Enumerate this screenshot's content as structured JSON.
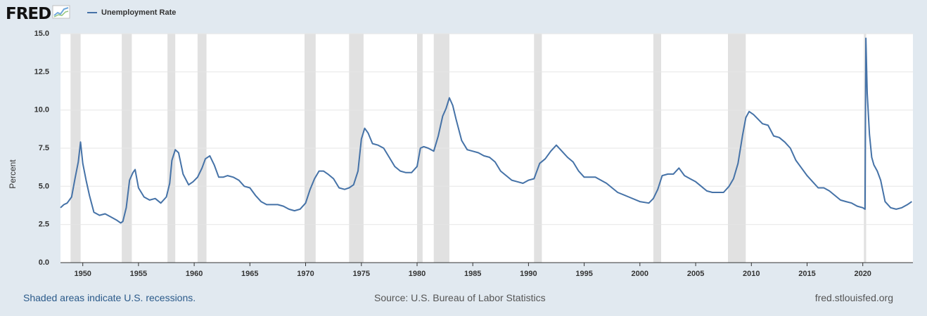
{
  "header": {
    "logo_text": "FRED",
    "logo_icon": "line-chart-icon",
    "legend_label": "Unemployment Rate"
  },
  "footer": {
    "recession_note": "Shaded areas indicate U.S. recessions.",
    "source": "Source: U.S. Bureau of Labor Statistics",
    "site": "fred.stlouisfed.org"
  },
  "colors": {
    "series": "#4572a7",
    "recession": "#e1e1e1",
    "background": "#e1e9f0",
    "plot": "#ffffff",
    "link": "#2b5a8a"
  },
  "chart_data": {
    "type": "line",
    "title": "",
    "xlabel": "",
    "ylabel": "Percent",
    "xlim": [
      1948.0,
      2024.5
    ],
    "ylim": [
      0,
      15
    ],
    "y_ticks": [
      "0.0",
      "2.5",
      "5.0",
      "7.5",
      "10.0",
      "12.5",
      "15.0"
    ],
    "x_ticks": [
      "1950",
      "1955",
      "1960",
      "1965",
      "1970",
      "1975",
      "1980",
      "1985",
      "1990",
      "1995",
      "2000",
      "2005",
      "2010",
      "2015",
      "2020"
    ],
    "grid": "horizontal",
    "legend": "top-left",
    "recessions": [
      [
        1948.9,
        1949.8
      ],
      [
        1953.5,
        1954.4
      ],
      [
        1957.6,
        1958.3
      ],
      [
        1960.3,
        1961.1
      ],
      [
        1969.9,
        1970.9
      ],
      [
        1973.9,
        1975.2
      ],
      [
        1980.0,
        1980.5
      ],
      [
        1981.5,
        1982.9
      ],
      [
        1990.5,
        1991.2
      ],
      [
        2001.2,
        2001.9
      ],
      [
        2007.9,
        2009.5
      ],
      [
        2020.1,
        2020.3
      ]
    ],
    "series": [
      {
        "name": "Unemployment Rate",
        "x": [
          1948.0,
          1948.3,
          1948.6,
          1949.0,
          1949.3,
          1949.6,
          1949.8,
          1950.0,
          1950.3,
          1950.6,
          1951.0,
          1951.5,
          1952.0,
          1952.5,
          1953.0,
          1953.4,
          1953.6,
          1953.9,
          1954.2,
          1954.5,
          1954.7,
          1955.0,
          1955.5,
          1956.0,
          1956.5,
          1957.0,
          1957.5,
          1957.8,
          1958.0,
          1958.3,
          1958.6,
          1959.0,
          1959.5,
          1959.9,
          1960.3,
          1960.7,
          1961.0,
          1961.4,
          1961.8,
          1962.2,
          1962.6,
          1963.0,
          1963.5,
          1964.0,
          1964.5,
          1965.0,
          1965.5,
          1966.0,
          1966.5,
          1967.0,
          1967.5,
          1968.0,
          1968.5,
          1969.0,
          1969.5,
          1970.0,
          1970.4,
          1970.8,
          1971.2,
          1971.6,
          1972.0,
          1972.5,
          1973.0,
          1973.5,
          1973.9,
          1974.3,
          1974.7,
          1975.0,
          1975.3,
          1975.6,
          1976.0,
          1976.5,
          1977.0,
          1977.5,
          1978.0,
          1978.5,
          1979.0,
          1979.5,
          1980.0,
          1980.3,
          1980.6,
          1981.0,
          1981.5,
          1981.9,
          1982.3,
          1982.6,
          1982.9,
          1983.2,
          1983.5,
          1984.0,
          1984.5,
          1985.0,
          1985.5,
          1986.0,
          1986.5,
          1987.0,
          1987.5,
          1988.0,
          1988.5,
          1989.0,
          1989.5,
          1990.0,
          1990.5,
          1991.0,
          1991.5,
          1992.0,
          1992.5,
          1993.0,
          1993.5,
          1994.0,
          1994.5,
          1995.0,
          1996.0,
          1997.0,
          1998.0,
          1999.0,
          2000.0,
          2000.8,
          2001.2,
          2001.6,
          2002.0,
          2002.5,
          2003.0,
          2003.5,
          2004.0,
          2004.5,
          2005.0,
          2005.5,
          2006.0,
          2006.5,
          2007.0,
          2007.5,
          2008.0,
          2008.4,
          2008.8,
          2009.2,
          2009.5,
          2009.8,
          2010.2,
          2010.6,
          2011.0,
          2011.5,
          2012.0,
          2012.5,
          2013.0,
          2013.5,
          2014.0,
          2014.5,
          2015.0,
          2015.5,
          2016.0,
          2016.5,
          2017.0,
          2017.5,
          2018.0,
          2018.5,
          2019.0,
          2019.5,
          2020.0,
          2020.2,
          2020.28,
          2020.4,
          2020.6,
          2020.8,
          2021.0,
          2021.3,
          2021.6,
          2022.0,
          2022.5,
          2023.0,
          2023.5,
          2024.0,
          2024.4
        ],
        "y": [
          3.6,
          3.8,
          3.9,
          4.3,
          5.5,
          6.6,
          7.9,
          6.5,
          5.4,
          4.4,
          3.3,
          3.1,
          3.2,
          3.0,
          2.8,
          2.6,
          2.7,
          3.6,
          5.4,
          5.9,
          6.1,
          4.9,
          4.3,
          4.1,
          4.2,
          3.9,
          4.3,
          5.2,
          6.7,
          7.4,
          7.2,
          5.8,
          5.1,
          5.3,
          5.6,
          6.2,
          6.8,
          7.0,
          6.4,
          5.6,
          5.6,
          5.7,
          5.6,
          5.4,
          5.0,
          4.9,
          4.4,
          4.0,
          3.8,
          3.8,
          3.8,
          3.7,
          3.5,
          3.4,
          3.5,
          3.9,
          4.8,
          5.5,
          6.0,
          6.0,
          5.8,
          5.5,
          4.9,
          4.8,
          4.9,
          5.1,
          6.0,
          8.1,
          8.8,
          8.5,
          7.8,
          7.7,
          7.5,
          6.9,
          6.3,
          6.0,
          5.9,
          5.9,
          6.3,
          7.5,
          7.6,
          7.5,
          7.3,
          8.3,
          9.6,
          10.1,
          10.8,
          10.3,
          9.4,
          8.0,
          7.4,
          7.3,
          7.2,
          7.0,
          6.9,
          6.6,
          6.0,
          5.7,
          5.4,
          5.3,
          5.2,
          5.4,
          5.5,
          6.5,
          6.8,
          7.3,
          7.7,
          7.3,
          6.9,
          6.6,
          6.0,
          5.6,
          5.6,
          5.2,
          4.6,
          4.3,
          4.0,
          3.9,
          4.2,
          4.8,
          5.7,
          5.8,
          5.8,
          6.2,
          5.7,
          5.5,
          5.3,
          5.0,
          4.7,
          4.6,
          4.6,
          4.6,
          5.0,
          5.5,
          6.5,
          8.3,
          9.5,
          9.9,
          9.7,
          9.4,
          9.1,
          9.0,
          8.3,
          8.2,
          7.9,
          7.5,
          6.7,
          6.2,
          5.7,
          5.3,
          4.9,
          4.9,
          4.7,
          4.4,
          4.1,
          4.0,
          3.9,
          3.7,
          3.6,
          3.5,
          14.7,
          11.1,
          8.4,
          6.9,
          6.4,
          6.0,
          5.4,
          4.0,
          3.6,
          3.5,
          3.6,
          3.8,
          4.0
        ]
      }
    ]
  }
}
